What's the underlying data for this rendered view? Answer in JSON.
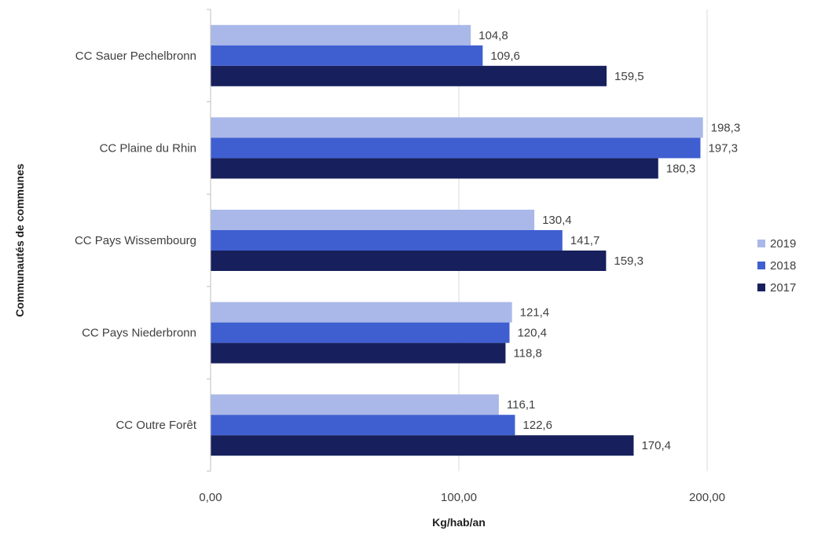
{
  "chart_data": {
    "type": "bar",
    "orientation": "horizontal",
    "categories": [
      "CC Sauer Pechelbronn",
      "CC Plaine du Rhin",
      "CC Pays Wissembourg",
      "CC Pays Niederbronn",
      "CC Outre Forêt"
    ],
    "series": [
      {
        "name": "2019",
        "color": "#a9b8e8",
        "values": [
          104.8,
          198.3,
          130.4,
          121.4,
          116.1
        ],
        "labels": [
          "104,8",
          "198,3",
          "130,4",
          "121,4",
          "116,1"
        ]
      },
      {
        "name": "2018",
        "color": "#3f5fd1",
        "values": [
          109.6,
          197.3,
          141.7,
          120.4,
          122.6
        ],
        "labels": [
          "109,6",
          "197,3",
          "141,7",
          "120,4",
          "122,6"
        ]
      },
      {
        "name": "2017",
        "color": "#17205c",
        "values": [
          159.5,
          180.3,
          159.3,
          118.8,
          170.4
        ],
        "labels": [
          "159,5",
          "180,3",
          "159,3",
          "118,8",
          "170,4"
        ]
      }
    ],
    "xlabel": "Kg/hab/an",
    "ylabel": "Communautés de communes",
    "xlim": [
      0,
      200
    ],
    "xticks": [
      0,
      100,
      200
    ],
    "xtick_labels": [
      "0,00",
      "100,00",
      "200,00"
    ],
    "grid": "vertical",
    "legend": {
      "position": "right",
      "order": [
        "2019",
        "2018",
        "2017"
      ]
    }
  }
}
